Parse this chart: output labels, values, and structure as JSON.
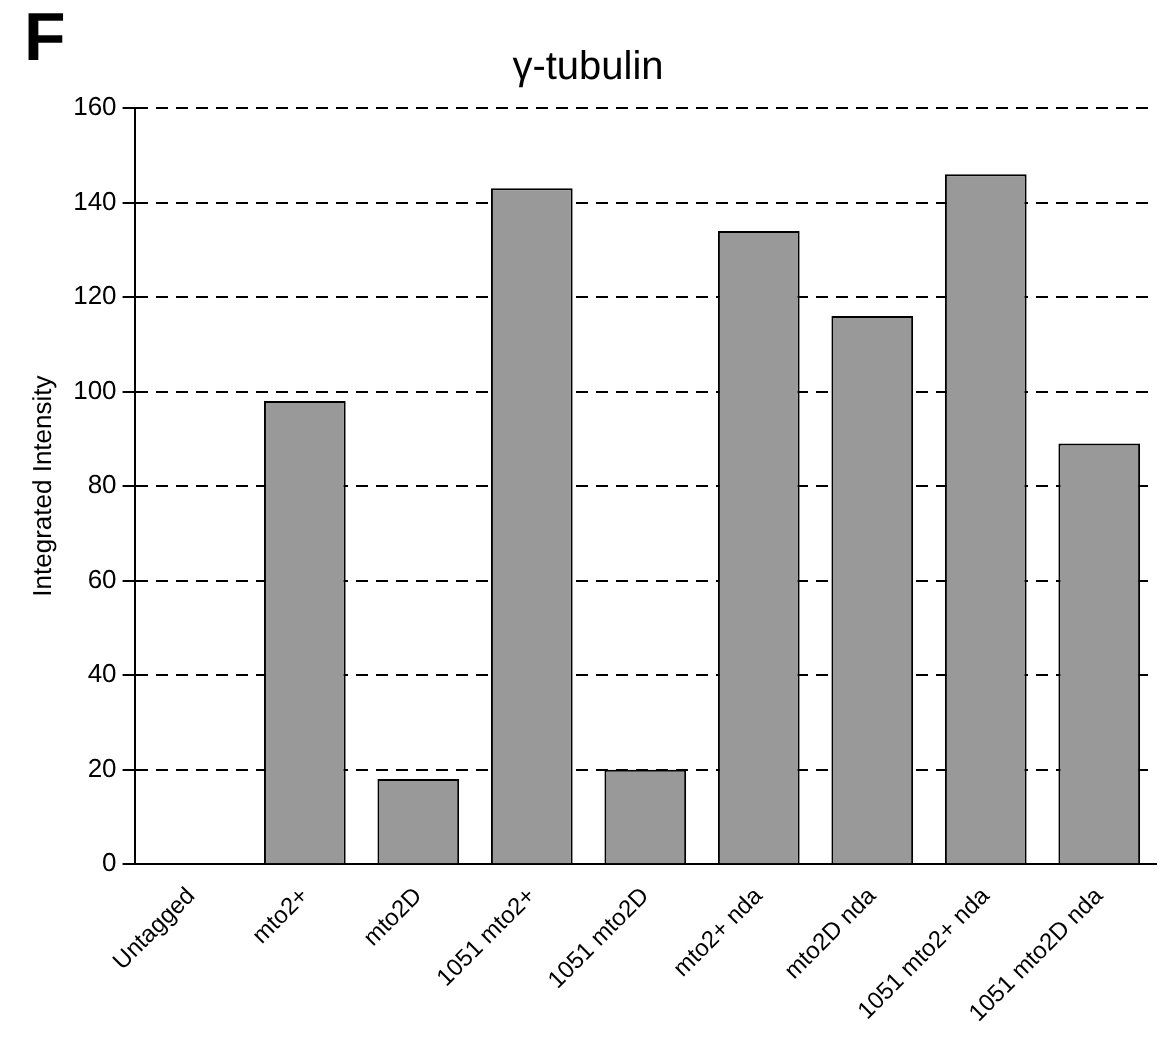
{
  "chart_data": {
    "type": "bar",
    "title": "γ-tubulin",
    "ylabel": "Integrated Intensity",
    "annotations": [
      "F"
    ],
    "categories": [
      "Untagged",
      "mto2+",
      "mto2D",
      "1051 mto2+",
      "1051 mto2D",
      "mto2+ nda",
      "mto2D nda",
      "1051 mto2+ nda",
      "1051 mto2D nda"
    ],
    "values": [
      0,
      98,
      18,
      143,
      20,
      134,
      116,
      146,
      89
    ],
    "color": "#999999",
    "ylim": [
      0,
      160
    ],
    "yticks": [
      0,
      20,
      40,
      60,
      80,
      100,
      120,
      140,
      160
    ],
    "grid": "y",
    "line_style": "dashed"
  }
}
